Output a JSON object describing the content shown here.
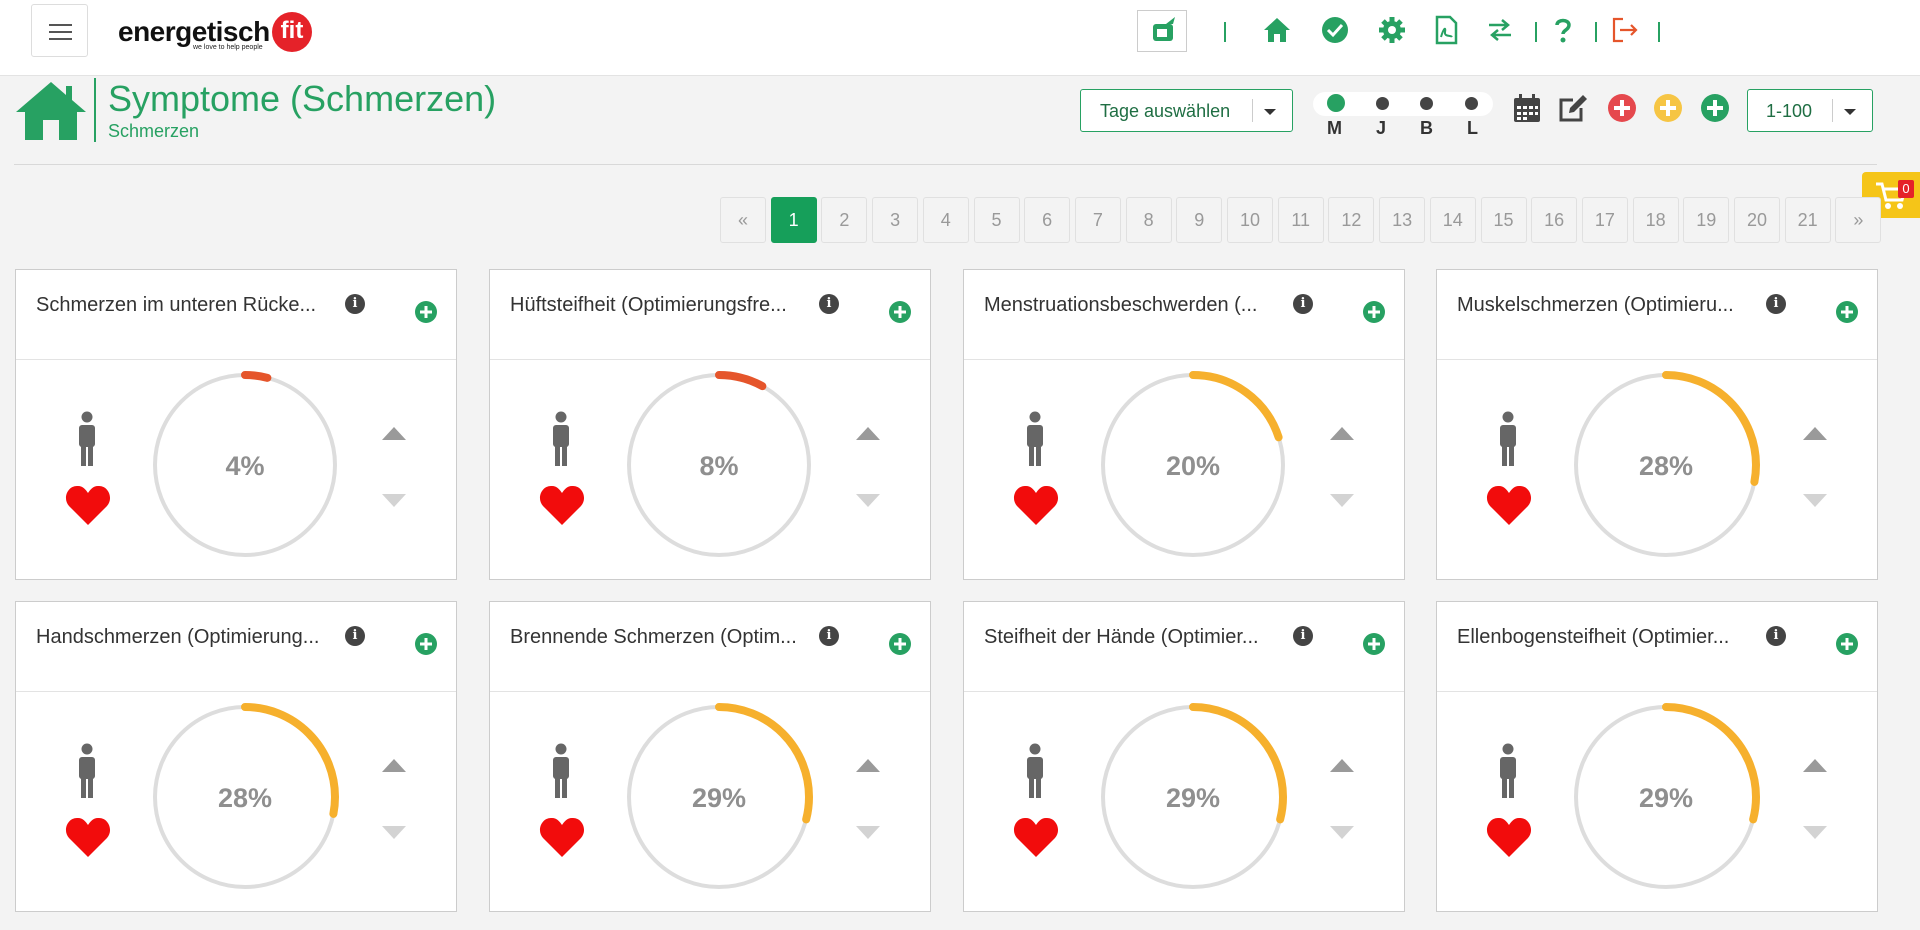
{
  "brand": {
    "name": "energetisch",
    "badge": "fit",
    "tagline": "we love to help people"
  },
  "colors": {
    "accent": "#27a162",
    "logo_red": "#e52229",
    "low": "#e5552b",
    "mid": "#f6b02d",
    "track": "#dddddd"
  },
  "topnav": {
    "icons": [
      "chat-icon",
      "home-icon",
      "check-circle-icon",
      "gear-icon",
      "pdf-file-icon",
      "swap-icon",
      "help-icon",
      "logout-icon"
    ]
  },
  "header": {
    "title": "Symptome (Schmerzen)",
    "subtitle": "Schmerzen",
    "days_select": "Tage auswählen",
    "range_select": "1-100",
    "day_parts": [
      {
        "label": "M",
        "active": true
      },
      {
        "label": "J",
        "active": false
      },
      {
        "label": "B",
        "active": false
      },
      {
        "label": "L",
        "active": false
      }
    ],
    "tool_icons": [
      "calendar-icon",
      "edit-icon",
      "add-red-icon",
      "add-yellow-icon",
      "add-green-icon"
    ]
  },
  "cart": {
    "count": "0"
  },
  "pagination": {
    "prev": "«",
    "next": "»",
    "pages": [
      "1",
      "2",
      "3",
      "4",
      "5",
      "6",
      "7",
      "8",
      "9",
      "10",
      "11",
      "12",
      "13",
      "14",
      "15",
      "16",
      "17",
      "18",
      "19",
      "20",
      "21"
    ],
    "current": "1"
  },
  "cards": [
    {
      "title": "Schmerzen im unteren Rücke...",
      "value": 4,
      "value_label": "4%",
      "color": "#e5552b"
    },
    {
      "title": "Hüftsteifheit (Optimierungsfre...",
      "value": 8,
      "value_label": "8%",
      "color": "#e5552b"
    },
    {
      "title": "Menstruationsbeschwerden (...",
      "value": 20,
      "value_label": "20%",
      "color": "#f6b02d"
    },
    {
      "title": "Muskelschmerzen (Optimieru...",
      "value": 28,
      "value_label": "28%",
      "color": "#f6b02d"
    },
    {
      "title": "Handschmerzen (Optimierung...",
      "value": 28,
      "value_label": "28%",
      "color": "#f6b02d"
    },
    {
      "title": "Brennende Schmerzen (Optim...",
      "value": 29,
      "value_label": "29%",
      "color": "#f6b02d"
    },
    {
      "title": "Steifheit der Hände (Optimier...",
      "value": 29,
      "value_label": "29%",
      "color": "#f6b02d"
    },
    {
      "title": "Ellenbogensteifheit (Optimier...",
      "value": 29,
      "value_label": "29%",
      "color": "#f6b02d"
    }
  ]
}
